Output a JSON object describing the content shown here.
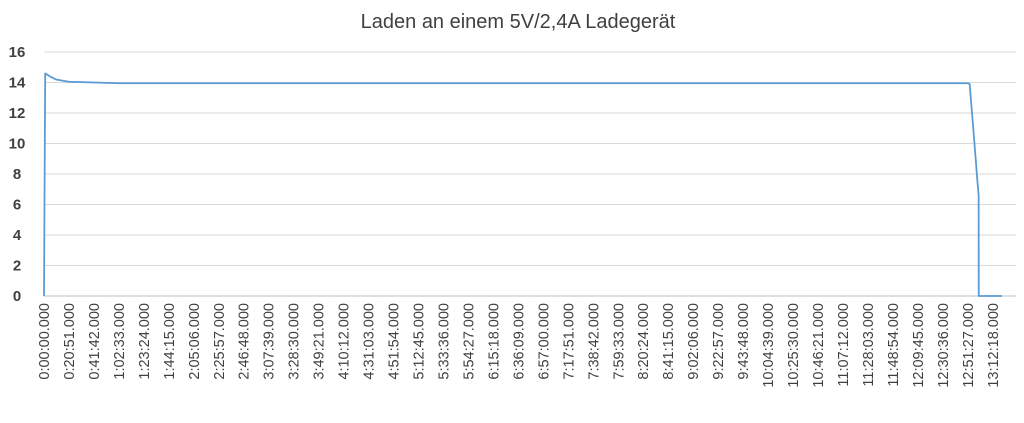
{
  "chart_data": {
    "type": "line",
    "title": "Laden an einem 5V/2,4A Ladegerät",
    "xlabel": "",
    "ylabel": "",
    "ylim": [
      0,
      16
    ],
    "yticks": [
      0,
      2,
      4,
      6,
      8,
      10,
      12,
      14,
      16
    ],
    "grid": true,
    "legend": "none",
    "line_color": "#5b9bd5",
    "x_tick_labels": [
      "0:00:00.000",
      "0:20:51.000",
      "0:41:42.000",
      "1:02:33.000",
      "1:23:24.000",
      "1:44:15.000",
      "2:05:06.000",
      "2:25:57.000",
      "2:46:48.000",
      "3:07:39.000",
      "3:28:30.000",
      "3:49:21.000",
      "4:10:12.000",
      "4:31:03.000",
      "4:51:54.000",
      "5:12:45.000",
      "5:33:36.000",
      "5:54:27.000",
      "6:15:18.000",
      "6:36:09.000",
      "6:57:00.000",
      "7:17:51.000",
      "7:38:42.000",
      "7:59:33.000",
      "8:20:24.000",
      "8:41:15.000",
      "9:02:06.000",
      "9:22:57.000",
      "9:43:48.000",
      "10:04:39.000",
      "10:25:30.000",
      "10:46:21.000",
      "11:07:12.000",
      "11:28:03.000",
      "11:48:54.000",
      "12:09:45.000",
      "12:30:36.000",
      "12:51:27.000",
      "13:12:18.000"
    ],
    "series": [
      {
        "x": [
          "0:00:00",
          "0:01:00",
          "0:05:00",
          "0:10:00",
          "0:20:51",
          "0:41:42",
          "1:02:33",
          "2:05:06",
          "3:07:39",
          "4:10:12",
          "5:12:45",
          "6:15:18",
          "7:17:51",
          "8:20:24",
          "9:22:57",
          "10:25:30",
          "11:28:03",
          "12:30:36",
          "12:51:27",
          "12:53:00",
          "12:56:00",
          "12:58:00",
          "12:59:30",
          "13:00:30",
          "13:00:35",
          "13:05:00",
          "13:12:18",
          "13:20:00"
        ],
        "y": [
          0,
          14.6,
          14.4,
          14.2,
          14.05,
          14.0,
          13.95,
          13.95,
          13.95,
          13.95,
          13.95,
          13.95,
          13.95,
          13.95,
          13.95,
          13.95,
          13.95,
          13.95,
          13.95,
          13.9,
          11.0,
          9.0,
          7.5,
          6.6,
          0,
          0,
          0,
          0
        ]
      }
    ]
  }
}
